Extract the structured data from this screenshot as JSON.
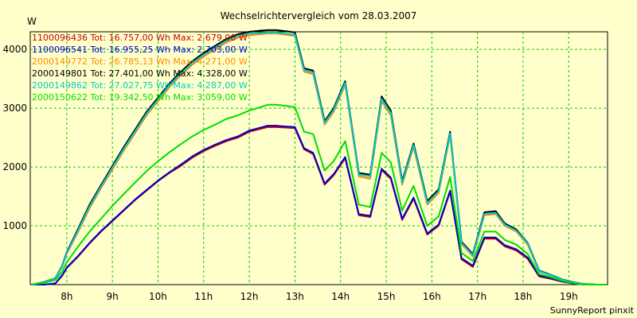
{
  "chart_data": {
    "type": "line",
    "title": "Wechselrichtervergleich vom 28.03.2007",
    "ylabel": "W",
    "xlabel": "",
    "footer": "SunnyReport pinxit",
    "xlim": [
      7.2,
      19.85
    ],
    "ylim": [
      0,
      4300
    ],
    "x_ticks": [
      {
        "v": 8,
        "label": "8h"
      },
      {
        "v": 9,
        "label": "9h"
      },
      {
        "v": 10,
        "label": "10h"
      },
      {
        "v": 11,
        "label": "11h"
      },
      {
        "v": 12,
        "label": "12h"
      },
      {
        "v": 13,
        "label": "13h"
      },
      {
        "v": 14,
        "label": "14h"
      },
      {
        "v": 15,
        "label": "15h"
      },
      {
        "v": 16,
        "label": "16h"
      },
      {
        "v": 17,
        "label": "17h"
      },
      {
        "v": 18,
        "label": "18h"
      },
      {
        "v": 19,
        "label": "19h"
      }
    ],
    "y_ticks": [
      {
        "v": 1000,
        "label": "1000"
      },
      {
        "v": 2000,
        "label": "2000"
      },
      {
        "v": 3000,
        "label": "3000"
      },
      {
        "v": 4000,
        "label": "4000"
      }
    ],
    "grid": true,
    "legend_position": "top-left",
    "x": [
      7.25,
      7.5,
      7.75,
      7.9,
      8.0,
      8.25,
      8.5,
      8.75,
      9.0,
      9.25,
      9.5,
      9.75,
      10.0,
      10.25,
      10.5,
      10.75,
      11.0,
      11.25,
      11.5,
      11.75,
      12.0,
      12.25,
      12.4,
      12.6,
      12.8,
      13.0,
      13.2,
      13.4,
      13.65,
      13.85,
      14.1,
      14.4,
      14.65,
      14.9,
      15.1,
      15.35,
      15.6,
      15.9,
      16.15,
      16.4,
      16.65,
      16.9,
      17.15,
      17.4,
      17.6,
      17.85,
      18.1,
      18.35,
      18.6,
      18.85,
      19.1,
      19.35,
      19.6,
      19.8
    ],
    "series": [
      {
        "name": "1100096436 Tot: 16.757,00 Wh Max: 2.679,00 W",
        "color": "#cc0000",
        "values": [
          0,
          0,
          20,
          150,
          280,
          480,
          700,
          900,
          1080,
          1260,
          1440,
          1600,
          1760,
          1900,
          2020,
          2160,
          2270,
          2360,
          2440,
          2500,
          2600,
          2650,
          2679,
          2679,
          2670,
          2660,
          2300,
          2220,
          1700,
          1860,
          2150,
          1180,
          1150,
          1950,
          1800,
          1100,
          1460,
          850,
          1000,
          1580,
          430,
          300,
          780,
          780,
          650,
          580,
          440,
          140,
          100,
          50,
          20,
          0,
          0,
          0
        ]
      },
      {
        "name": "1100096541 Tot: 16.955,25 Wh Max: 2.703,00 W",
        "color": "#0000cc",
        "values": [
          0,
          0,
          20,
          160,
          290,
          490,
          710,
          910,
          1090,
          1270,
          1450,
          1610,
          1770,
          1910,
          2040,
          2180,
          2290,
          2380,
          2460,
          2520,
          2620,
          2670,
          2703,
          2703,
          2690,
          2680,
          2320,
          2240,
          1720,
          1880,
          2170,
          1200,
          1170,
          1970,
          1820,
          1120,
          1480,
          870,
          1020,
          1600,
          450,
          320,
          800,
          800,
          670,
          600,
          460,
          150,
          110,
          55,
          20,
          0,
          0,
          0
        ]
      },
      {
        "name": "2000149772 Tot: 26.785,13 Wh Max: 4.271,00 W",
        "color": "#ff8800",
        "values": [
          0,
          40,
          100,
          300,
          520,
          900,
          1300,
          1640,
          1960,
          2280,
          2580,
          2880,
          3120,
          3360,
          3560,
          3740,
          3880,
          4000,
          4120,
          4200,
          4240,
          4260,
          4271,
          4271,
          4250,
          4230,
          3620,
          3580,
          2720,
          2940,
          3400,
          1840,
          1800,
          3120,
          2880,
          1700,
          2340,
          1360,
          1560,
          2540,
          690,
          480,
          1180,
          1200,
          1000,
          900,
          680,
          220,
          160,
          80,
          30,
          10,
          0,
          0
        ]
      },
      {
        "name": "2000149801 Tot: 27.401,00 Wh Max: 4.328,00 W",
        "color": "#000000",
        "values": [
          0,
          45,
          110,
          320,
          550,
          950,
          1360,
          1690,
          2020,
          2340,
          2640,
          2940,
          3180,
          3420,
          3620,
          3800,
          3940,
          4060,
          4180,
          4260,
          4300,
          4320,
          4328,
          4328,
          4310,
          4290,
          3680,
          3640,
          2780,
          3000,
          3460,
          1900,
          1870,
          3200,
          2960,
          1760,
          2400,
          1420,
          1620,
          2600,
          730,
          520,
          1230,
          1250,
          1040,
          940,
          710,
          240,
          170,
          90,
          40,
          10,
          0,
          0
        ]
      },
      {
        "name": "2000149862 Tot: 27.027,75 Wh Max: 4.287,00 W",
        "color": "#00cccc",
        "values": [
          0,
          42,
          105,
          310,
          535,
          925,
          1330,
          1665,
          1990,
          2310,
          2610,
          2910,
          3150,
          3390,
          3590,
          3770,
          3910,
          4030,
          4150,
          4230,
          4270,
          4280,
          4287,
          4287,
          4270,
          4250,
          3650,
          3610,
          2750,
          2970,
          3430,
          1870,
          1840,
          3160,
          2920,
          1730,
          2370,
          1390,
          1590,
          2570,
          710,
          500,
          1200,
          1220,
          1020,
          920,
          700,
          230,
          165,
          85,
          35,
          10,
          0,
          0
        ]
      },
      {
        "name": "2000150622 Tot: 19.342,50 Wh Max: 3.059,00 W",
        "color": "#00dd00",
        "values": [
          0,
          30,
          80,
          220,
          380,
          650,
          900,
          1120,
          1340,
          1540,
          1740,
          1930,
          2100,
          2250,
          2390,
          2520,
          2630,
          2720,
          2820,
          2880,
          2960,
          3020,
          3059,
          3059,
          3040,
          3020,
          2600,
          2560,
          1940,
          2100,
          2440,
          1360,
          1320,
          2240,
          2080,
          1260,
          1680,
          1000,
          1160,
          1830,
          540,
          400,
          900,
          900,
          760,
          680,
          520,
          180,
          130,
          65,
          25,
          0,
          0,
          0
        ]
      }
    ]
  }
}
